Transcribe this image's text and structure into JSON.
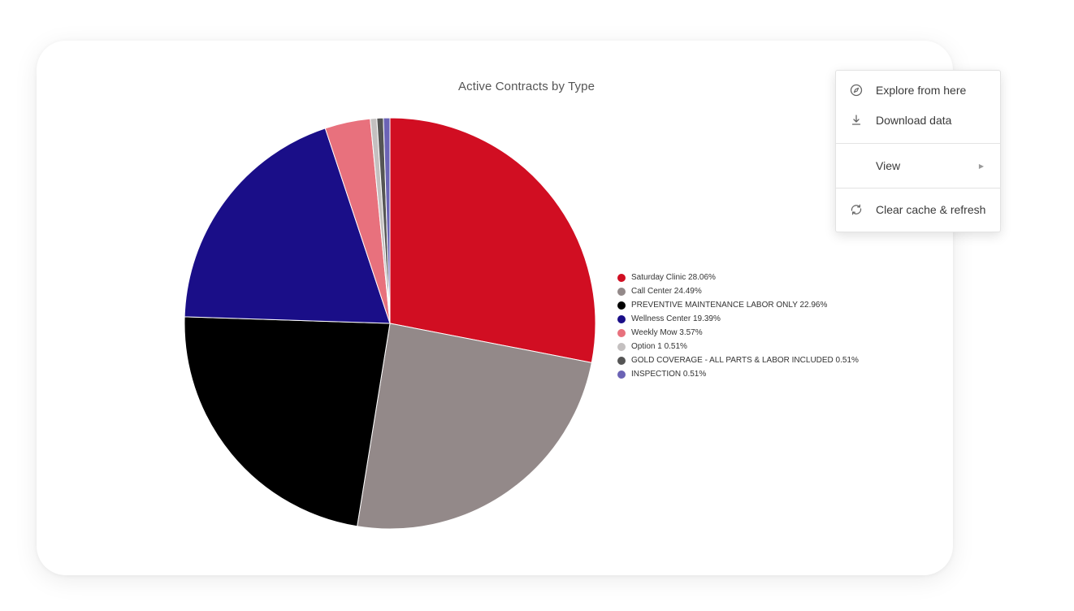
{
  "chart_data": {
    "type": "pie",
    "title": "Active Contracts by Type",
    "slices": [
      {
        "label": "Saturday Clinic",
        "value": 28.06,
        "display": "Saturday Clinic 28.06%",
        "color": "#d10e22"
      },
      {
        "label": "Call Center",
        "value": 24.49,
        "display": "Call Center 24.49%",
        "color": "#938989"
      },
      {
        "label": "PREVENTIVE MAINTENANCE LABOR ONLY",
        "value": 22.96,
        "display": "PREVENTIVE MAINTENANCE LABOR ONLY 22.96%",
        "color": "#000000"
      },
      {
        "label": "Wellness Center",
        "value": 19.39,
        "display": "Wellness Center 19.39%",
        "color": "#1a0e88"
      },
      {
        "label": "Weekly Mow",
        "value": 3.57,
        "display": "Weekly Mow 3.57%",
        "color": "#e8717d"
      },
      {
        "label": "Option 1",
        "value": 0.51,
        "display": "Option 1 0.51%",
        "color": "#c4c0c0"
      },
      {
        "label": "GOLD COVERAGE - ALL PARTS & LABOR INCLUDED",
        "value": 0.51,
        "display": "GOLD COVERAGE - ALL PARTS & LABOR INCLUDED 0.51%",
        "color": "#555555"
      },
      {
        "label": "INSPECTION",
        "value": 0.51,
        "display": "INSPECTION 0.51%",
        "color": "#6b63b5"
      }
    ],
    "legend_position": "right"
  },
  "menu": {
    "explore_label": "Explore from here",
    "download_label": "Download data",
    "view_label": "View",
    "view_arrow": "▶",
    "refresh_label": "Clear cache & refresh"
  }
}
